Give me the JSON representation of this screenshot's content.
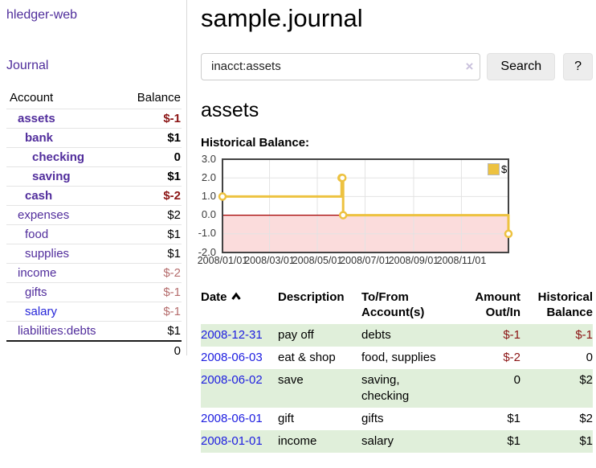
{
  "app": {
    "title": "hledger-web"
  },
  "sidebar": {
    "nav_journal": "Journal",
    "accounts_table": {
      "col_account": "Account",
      "col_balance": "Balance",
      "rows": [
        {
          "account": "assets",
          "balance": "$-1",
          "depth": 1,
          "bold": true,
          "balance_style": "neg"
        },
        {
          "account": "bank",
          "balance": "$1",
          "depth": 2,
          "bold": true,
          "balance_style": "pos"
        },
        {
          "account": "checking",
          "balance": "0",
          "depth": 3,
          "bold": true,
          "balance_style": "pos"
        },
        {
          "account": "saving",
          "balance": "$1",
          "depth": 3,
          "bold": true,
          "balance_style": "pos"
        },
        {
          "account": "cash",
          "balance": "$-2",
          "depth": 2,
          "bold": true,
          "balance_style": "neg"
        },
        {
          "account": "expenses",
          "balance": "$2",
          "depth": 1,
          "bold": false,
          "balance_style": "pos"
        },
        {
          "account": "food",
          "balance": "$1",
          "depth": 2,
          "bold": false,
          "balance_style": "pos"
        },
        {
          "account": "supplies",
          "balance": "$1",
          "depth": 2,
          "bold": false,
          "balance_style": "pos"
        },
        {
          "account": "income",
          "balance": "$-2",
          "depth": 1,
          "bold": false,
          "balance_style": "neg-soft"
        },
        {
          "account": "gifts",
          "balance": "$-1",
          "depth": 2,
          "bold": false,
          "balance_style": "neg-soft"
        },
        {
          "account": "salary",
          "balance": "$-1",
          "depth": 2,
          "bold": false,
          "balance_style": "neg-soft",
          "link_color": "blue"
        },
        {
          "account": "liabilities:debts",
          "balance": "$1",
          "depth": 1,
          "bold": false,
          "balance_style": "pos"
        }
      ],
      "total": "0"
    }
  },
  "main": {
    "title": "sample.journal",
    "search": {
      "value": "inacct:assets",
      "clear_icon": "×",
      "search_button": "Search",
      "help_button": "?"
    },
    "account_heading": "assets",
    "chart_heading": "Historical Balance:"
  },
  "chart_data": {
    "type": "line",
    "title": "Historical Balance",
    "step": true,
    "grid": true,
    "legend": [
      {
        "label": "$",
        "color": "#edc240"
      }
    ],
    "legend_position": "top-right",
    "xlim": [
      "2008-01-01",
      "2008-12-31"
    ],
    "ylim": [
      -2,
      3
    ],
    "y_ticks": [
      "3.0",
      "2.0",
      "1.0",
      "0.0",
      "-1.0",
      "-2.0"
    ],
    "x_ticks": [
      "2008/01/01",
      "2008/03/01",
      "2008/05/01",
      "2008/07/01",
      "2008/09/01",
      "2008/11/01"
    ],
    "zero_line_color": "#a40000",
    "negative_region_color": "#fbdcdc",
    "grid_color": "#e3e3e3",
    "border_color": "#434343",
    "series": [
      {
        "name": "$",
        "color": "#edc240",
        "points": [
          {
            "x": "2008-01-01",
            "y": 1
          },
          {
            "x": "2008-06-01",
            "y": 2
          },
          {
            "x": "2008-06-02",
            "y": 2
          },
          {
            "x": "2008-06-03",
            "y": 0
          },
          {
            "x": "2008-12-31",
            "y": -1
          }
        ]
      }
    ]
  },
  "register": {
    "columns": [
      {
        "label": "Date",
        "sorted": "asc"
      },
      {
        "label": "Description"
      },
      {
        "label": "To/From Account(s)"
      },
      {
        "label": "Amount Out/In",
        "align": "right"
      },
      {
        "label": "Historical Balance",
        "align": "right"
      }
    ],
    "rows": [
      {
        "date": "2008-12-31",
        "description": "pay off",
        "accounts": "debts",
        "amount": "$-1",
        "amount_style": "neg",
        "balance": "$-1",
        "balance_style": "neg"
      },
      {
        "date": "2008-06-03",
        "description": "eat & shop",
        "accounts": "food, supplies",
        "amount": "$-2",
        "amount_style": "neg",
        "balance": "0",
        "balance_style": "pos"
      },
      {
        "date": "2008-06-02",
        "description": "save",
        "accounts": "saving, checking",
        "amount": "0",
        "amount_style": "pos",
        "balance": "$2",
        "balance_style": "pos"
      },
      {
        "date": "2008-06-01",
        "description": "gift",
        "accounts": "gifts",
        "amount": "$1",
        "amount_style": "pos",
        "balance": "$2",
        "balance_style": "pos"
      },
      {
        "date": "2008-01-01",
        "description": "income",
        "accounts": "salary",
        "amount": "$1",
        "amount_style": "pos",
        "balance": "$1",
        "balance_style": "pos"
      }
    ]
  }
}
